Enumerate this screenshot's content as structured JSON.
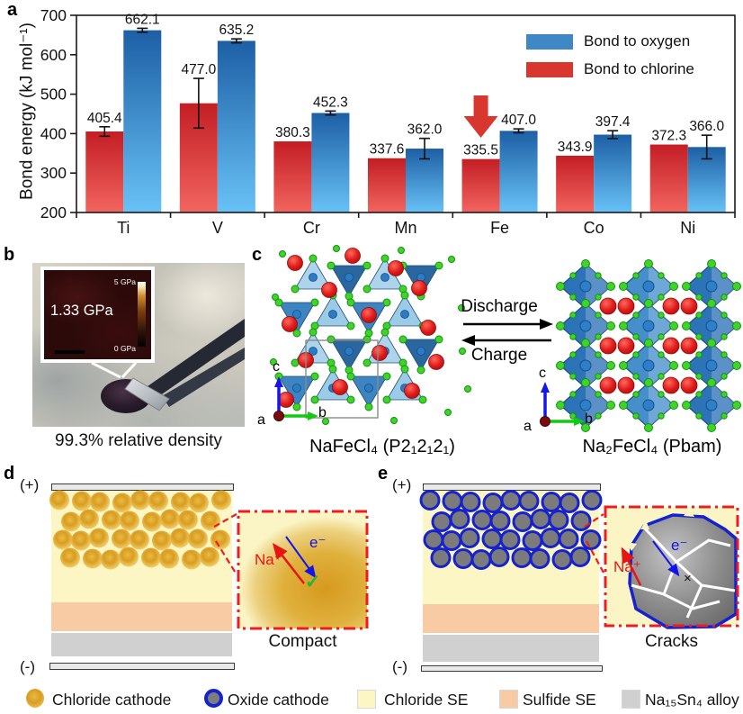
{
  "panel_labels": {
    "a": "a",
    "b": "b",
    "c": "c",
    "d": "d",
    "e": "e"
  },
  "chart_data": {
    "type": "bar",
    "title": "",
    "ylabel": "Bond energy (kJ mol⁻¹)",
    "xlabel": "",
    "ylim": [
      200,
      700
    ],
    "yticks": [
      200,
      300,
      400,
      500,
      600,
      700
    ],
    "grid": false,
    "legend_position": "top-right",
    "categories": [
      "Ti",
      "V",
      "Cr",
      "Mn",
      "Fe",
      "Co",
      "Ni"
    ],
    "bar_order": [
      "Bond to chlorine",
      "Bond to oxygen"
    ],
    "series": [
      {
        "name": "Bond to oxygen",
        "legend_color": "#3f88c5",
        "color_top": "#1d5fa5",
        "color_bottom": "#68c2f6",
        "values": [
          662.1,
          635.2,
          452.3,
          362.0,
          407.0,
          397.4,
          366.0
        ],
        "errors": [
          5,
          5,
          5,
          26,
          5,
          10,
          30
        ]
      },
      {
        "name": "Bond to chlorine",
        "legend_color": "#d7372f",
        "color_top": "#c31e24",
        "color_bottom": "#f2655f",
        "values": [
          405.4,
          477.0,
          380.3,
          337.6,
          335.5,
          343.9,
          372.3
        ],
        "errors": [
          12,
          63,
          0,
          0,
          0,
          0,
          0
        ]
      }
    ],
    "annotation": {
      "type": "down-arrow",
      "category": "Fe",
      "series": "Bond to chlorine",
      "color": "#d7372f"
    }
  },
  "panel_b": {
    "inset_value": "1.33 GPa",
    "scale_max": "5 GPa",
    "scale_min": "0 GPa",
    "caption": "99.3% relative density"
  },
  "panel_c": {
    "left_formula": "NaFeCl₄ (P2₁2₁2₁)",
    "right_formula": "Na₂FeCl₄ (Pbam)",
    "forward_label": "Discharge",
    "reverse_label": "Charge",
    "axes": {
      "a": "a",
      "b": "b",
      "c": "c"
    }
  },
  "panel_d": {
    "positive": "(+)",
    "negative": "(-)",
    "ion_label": "Na⁺",
    "electron_label": "e⁻",
    "check": "✓",
    "caption": "Compact"
  },
  "panel_e": {
    "positive": "(+)",
    "negative": "(-)",
    "ion_label": "Na⁺",
    "electron_label": "e⁻",
    "cross": "×",
    "caption": "Cracks"
  },
  "bottom_legend": {
    "items": [
      {
        "label": "Chloride cathode",
        "swatch": "gold-sphere"
      },
      {
        "label": "Oxide cathode",
        "swatch": "gray-sphere-blue-ring"
      },
      {
        "label": "Chloride SE",
        "swatch": "square",
        "color": "#fcf6c5"
      },
      {
        "label": "Sulfide SE",
        "swatch": "square",
        "color": "#f8cba4"
      },
      {
        "label": "Na₁₅Sn₄ alloy",
        "swatch": "square",
        "color": "#d0d0d0"
      }
    ]
  }
}
